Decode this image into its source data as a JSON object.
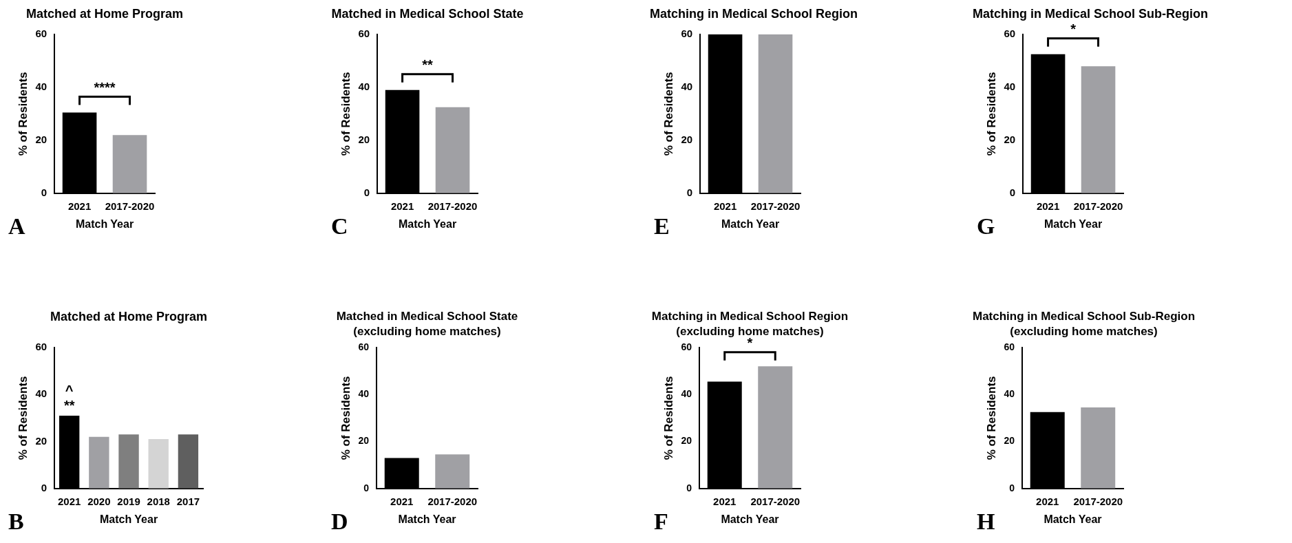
{
  "chart_data": [
    {
      "type": "bar",
      "title": "Matched at Home Program",
      "xlabel": "Match Year",
      "ylabel": "% of Residents",
      "categories": [
        "2021",
        "2017-2020"
      ],
      "colors": [
        "#000000",
        "#a0a0a4"
      ],
      "values": [
        30.5,
        22
      ],
      "ylim": [
        0,
        60
      ],
      "yticks": [
        0,
        20,
        40,
        60
      ],
      "annotations": [
        "A",
        "****"
      ]
    },
    {
      "type": "bar",
      "title": "Matched in Medical School State",
      "xlabel": "Match Year",
      "ylabel": "% of Residents",
      "categories": [
        "2021",
        "2017-2020"
      ],
      "colors": [
        "#000000",
        "#a0a0a4"
      ],
      "values": [
        39,
        32.5
      ],
      "ylim": [
        0,
        60
      ],
      "yticks": [
        0,
        20,
        40,
        60
      ],
      "annotations": [
        "C",
        "**"
      ]
    },
    {
      "type": "bar",
      "title": "Matching in Medical School Region",
      "xlabel": "Match Year",
      "ylabel": "% of Residents",
      "categories": [
        "2021",
        "2017-2020"
      ],
      "colors": [
        "#000000",
        "#a0a0a4"
      ],
      "values": [
        60,
        60
      ],
      "ylim": [
        0,
        60
      ],
      "yticks": [
        0,
        20,
        40,
        60
      ],
      "annotations": [
        "E"
      ]
    },
    {
      "type": "bar",
      "title": "Matching in Medical School Sub-Region",
      "xlabel": "Match Year",
      "ylabel": "% of Residents",
      "categories": [
        "2021",
        "2017-2020"
      ],
      "colors": [
        "#000000",
        "#a0a0a4"
      ],
      "values": [
        52.5,
        48
      ],
      "ylim": [
        0,
        60
      ],
      "yticks": [
        0,
        20,
        40,
        60
      ],
      "annotations": [
        "G",
        "*"
      ]
    },
    {
      "type": "bar",
      "title": "Matched at Home Program",
      "xlabel": "Match Year",
      "ylabel": "% of Residents",
      "categories": [
        "2021",
        "2020",
        "2019",
        "2018",
        "2017"
      ],
      "colors": [
        "#000000",
        "#a0a0a4",
        "#7f7f7f",
        "#d4d4d4",
        "#5f5f5f"
      ],
      "values": [
        31,
        22,
        23,
        21,
        23
      ],
      "ylim": [
        0,
        60
      ],
      "yticks": [
        0,
        20,
        40,
        60
      ],
      "annotations": [
        "B",
        "**",
        "^"
      ]
    },
    {
      "type": "bar",
      "title": "Matched in Medical School State\n(excluding home matches)",
      "xlabel": "Match Year",
      "ylabel": "% of Residents",
      "categories": [
        "2021",
        "2017-2020"
      ],
      "colors": [
        "#000000",
        "#a0a0a4"
      ],
      "values": [
        13,
        14.5
      ],
      "ylim": [
        0,
        60
      ],
      "yticks": [
        0,
        20,
        40,
        60
      ],
      "annotations": [
        "D"
      ]
    },
    {
      "type": "bar",
      "title": "Matching in Medical School Region\n(excluding home matches)",
      "xlabel": "Match Year",
      "ylabel": "% of Residents",
      "categories": [
        "2021",
        "2017-2020"
      ],
      "colors": [
        "#000000",
        "#a0a0a4"
      ],
      "values": [
        45.5,
        52
      ],
      "ylim": [
        0,
        60
      ],
      "yticks": [
        0,
        20,
        40,
        60
      ],
      "annotations": [
        "F",
        "*"
      ]
    },
    {
      "type": "bar",
      "title": "Matching in Medical School Sub-Region\n(excluding home matches)",
      "xlabel": "Match Year",
      "ylabel": "% of Residents",
      "categories": [
        "2021",
        "2017-2020"
      ],
      "colors": [
        "#000000",
        "#a0a0a4"
      ],
      "values": [
        32.5,
        34.5
      ],
      "ylim": [
        0,
        60
      ],
      "yticks": [
        0,
        20,
        40,
        60
      ],
      "annotations": [
        "H"
      ]
    }
  ]
}
